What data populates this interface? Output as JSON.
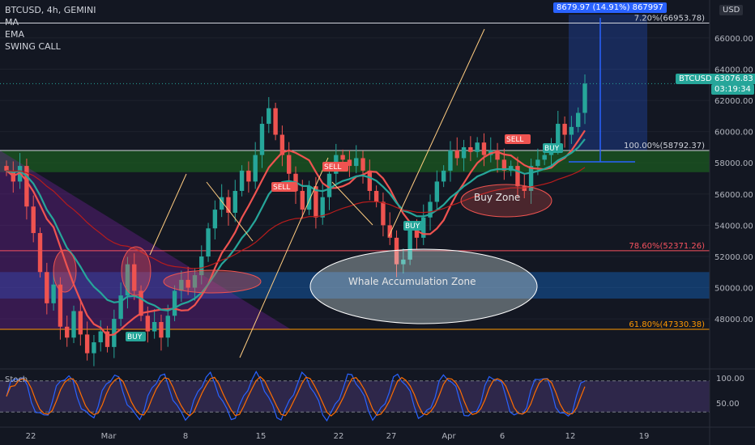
{
  "legend": {
    "symbol_line": "BTCUSD, 4h, GEMINI",
    "ma": "MA",
    "ema": "EMA",
    "swing": "SWING CALL"
  },
  "currency": "USD",
  "price_tag": {
    "symbol": "BTCUSD",
    "price": "63076.83",
    "countdown": "03:19:34",
    "color": "#26a69a"
  },
  "measure_box": {
    "text": "8679.97 (14.91%) 867997",
    "color": "#2962ff"
  },
  "stoch": {
    "label": "Stoch",
    "levels": [
      "100.00",
      "50.00"
    ]
  },
  "colors": {
    "bg": "#131722",
    "up": "#26a69a",
    "down": "#ef5350",
    "ma": "#ef5350",
    "ema": "#26a69a",
    "stoch_k": "#2962ff",
    "stoch_d": "#ff6d00",
    "fib": "#f7525f"
  },
  "annotations": {
    "whale": "Whale Accumulation Zone",
    "buyzone": "Buy Zone"
  },
  "signals": [
    {
      "text": "SELL",
      "color": "#ef5350"
    },
    {
      "text": "SELL",
      "color": "#ef5350"
    },
    {
      "text": "SELL",
      "color": "#ef5350"
    },
    {
      "text": "BUY",
      "color": "#26a69a"
    },
    {
      "text": "BUY",
      "color": "#26a69a"
    },
    {
      "text": "BUY",
      "color": "#26a69a"
    }
  ],
  "chart_data": {
    "type": "candlestick",
    "title": "BTCUSD, 4h, GEMINI",
    "y_unit": "USD",
    "ylim": [
      45000,
      67500
    ],
    "y_ticks": [
      48000,
      50000,
      52000,
      54000,
      56000,
      58000,
      60000,
      62000,
      64000,
      66000
    ],
    "x_ticks": [
      "22",
      "Mar",
      "8",
      "15",
      "22",
      "27",
      "Apr",
      "6",
      "12",
      "19"
    ],
    "fib_levels": [
      {
        "label": "7.20%(66953.78)",
        "value": 66953.78
      },
      {
        "label": "100.00%(58792.37)",
        "value": 58792.37
      },
      {
        "label": "78.60%(52371.26)",
        "value": 52371.26
      },
      {
        "label": "61.80%(47330.38)",
        "value": 47330.38
      }
    ],
    "last_price": 63076.83,
    "closes": [
      57500,
      56800,
      57800,
      55200,
      53500,
      51000,
      49000,
      50200,
      47500,
      46800,
      48500,
      47000,
      45800,
      46500,
      47200,
      46200,
      48000,
      49500,
      51500,
      49800,
      48200,
      47200,
      47800,
      46800,
      48200,
      49800,
      50500,
      50000,
      50800,
      52000,
      53800,
      55000,
      55800,
      54800,
      56200,
      57500,
      56800,
      58500,
      60500,
      61500,
      59800,
      58500,
      57300,
      56200,
      55000,
      56500,
      54500,
      55800,
      57300,
      58500,
      58200,
      57800,
      58300,
      57500,
      56200,
      55500,
      54000,
      53200,
      51500,
      51800,
      53800,
      53200,
      54500,
      55500,
      56800,
      57500,
      58800,
      58300,
      59000,
      58700,
      59300,
      58500,
      58800,
      58200,
      57500,
      57800,
      56500,
      56200,
      57800,
      58200,
      58500,
      59000,
      60500,
      59800,
      60300,
      61200,
      63076.83
    ]
  }
}
